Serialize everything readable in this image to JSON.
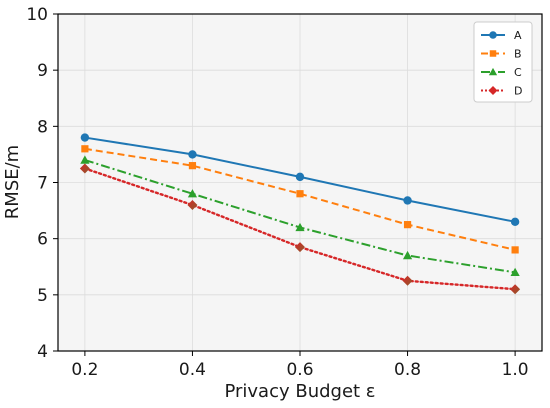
{
  "chart_data": {
    "type": "line",
    "xlabel": "Privacy Budget ε",
    "ylabel": "RMSE/m",
    "x": [
      0.2,
      0.4,
      0.6,
      0.8,
      1.0
    ],
    "xticks": [
      "0.2",
      "0.4",
      "0.6",
      "0.8",
      "1.0"
    ],
    "yticks": [
      "4",
      "5",
      "6",
      "7",
      "8",
      "9",
      "10"
    ],
    "xlim": [
      0.15,
      1.05
    ],
    "ylim": [
      4,
      10
    ],
    "grid": true,
    "legend_position": "top-right",
    "series": [
      {
        "name": "A",
        "values": [
          7.8,
          7.5,
          7.1,
          6.68,
          6.3
        ],
        "color": "#1f77b4",
        "line_style": "solid",
        "marker": "circle"
      },
      {
        "name": "B",
        "values": [
          7.6,
          7.3,
          6.8,
          6.25,
          5.8
        ],
        "color": "#ff7f0e",
        "line_style": "dashed",
        "marker": "square"
      },
      {
        "name": "C",
        "values": [
          7.4,
          6.8,
          6.2,
          5.7,
          5.4
        ],
        "color": "#2ca02c",
        "line_style": "dashdot",
        "marker": "triangle"
      },
      {
        "name": "D",
        "values": [
          7.25,
          6.6,
          5.85,
          5.25,
          5.1
        ],
        "color": "#d62728",
        "line_style": "dotted",
        "marker": "diamond"
      }
    ]
  }
}
